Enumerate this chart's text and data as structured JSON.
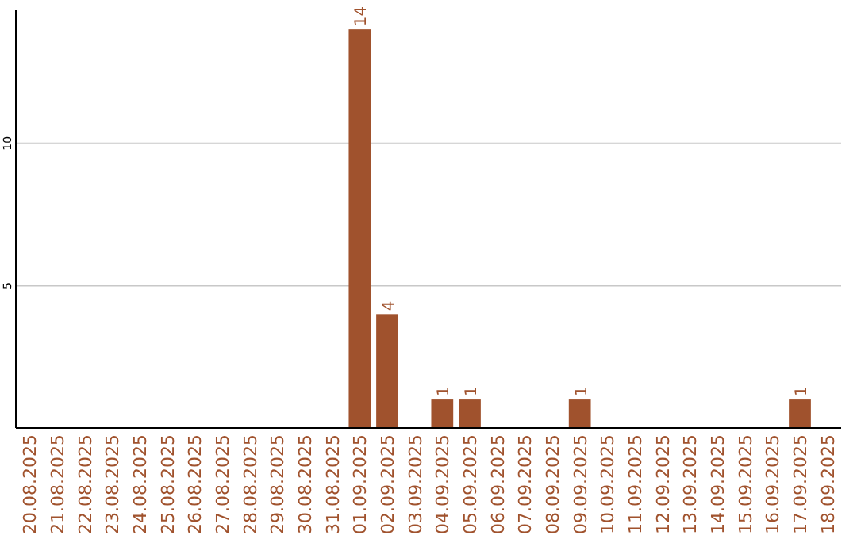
{
  "chart_data": {
    "type": "bar",
    "categories": [
      "20.08.2025",
      "21.08.2025",
      "22.08.2025",
      "23.08.2025",
      "24.08.2025",
      "25.08.2025",
      "26.08.2025",
      "27.08.2025",
      "28.08.2025",
      "29.08.2025",
      "30.08.2025",
      "31.08.2025",
      "01.09.2025",
      "02.09.2025",
      "03.09.2025",
      "04.09.2025",
      "05.09.2025",
      "06.09.2025",
      "07.09.2025",
      "08.09.2025",
      "09.09.2025",
      "10.09.2025",
      "11.09.2025",
      "12.09.2025",
      "13.09.2025",
      "14.09.2025",
      "15.09.2025",
      "16.09.2025",
      "17.09.2025",
      "18.09.2025"
    ],
    "values": [
      0,
      0,
      0,
      0,
      0,
      0,
      0,
      0,
      0,
      0,
      0,
      0,
      14,
      4,
      0,
      1,
      1,
      0,
      0,
      0,
      1,
      0,
      0,
      0,
      0,
      0,
      0,
      0,
      1,
      0
    ],
    "value_labels": [
      null,
      null,
      null,
      null,
      null,
      null,
      null,
      null,
      null,
      null,
      null,
      null,
      "14",
      "4",
      null,
      "1",
      "1",
      null,
      null,
      null,
      "1",
      null,
      null,
      null,
      null,
      null,
      null,
      null,
      "1",
      null
    ],
    "color": "#a0522d",
    "ylim": [
      0,
      14.7
    ],
    "yticks": [
      5,
      10
    ],
    "grid": "y"
  }
}
